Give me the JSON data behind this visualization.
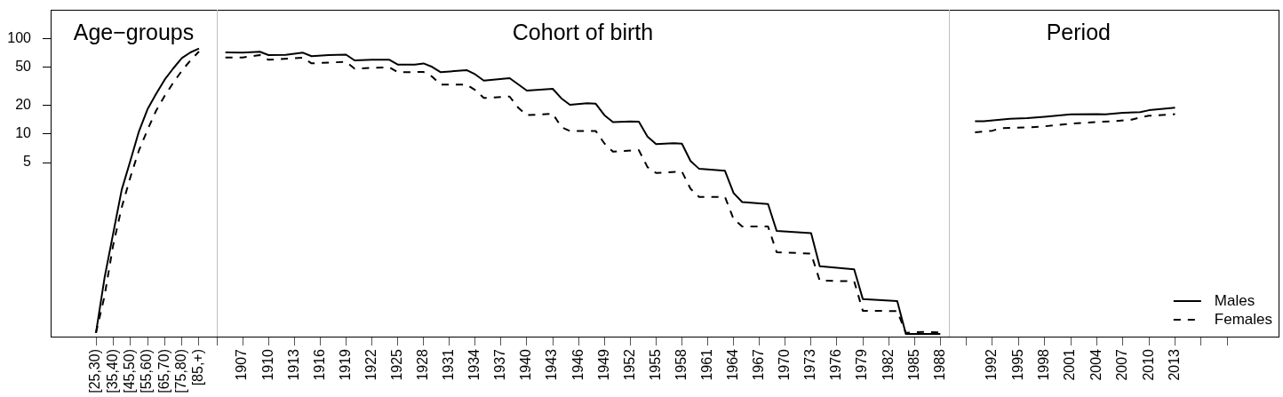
{
  "chart_data": [
    {
      "type": "line",
      "title": "Age−groups",
      "categories": [
        "[25,30)",
        null,
        "[35,40)",
        null,
        "[45,50)",
        null,
        "[55,60)",
        null,
        "[65,70)",
        null,
        "[75,80)",
        null,
        "[85,+)"
      ],
      "series": [
        {
          "color": "#000000",
          "line_style": "solid",
          "values": [
            0.082,
            0.31,
            0.9,
            2.6,
            5.2,
            10.6,
            18.1,
            26.2,
            37,
            48.6,
            62.4,
            71.5,
            78.5
          ]
        },
        {
          "color": "#000000",
          "line_style": "dashed",
          "values": [
            0.082,
            0.2,
            0.68,
            1.7,
            3.5,
            6.7,
            11,
            17.5,
            25,
            34.4,
            45.9,
            58.9,
            73
          ]
        }
      ],
      "ylim": [
        0.075,
        200
      ],
      "yticks": [
        5,
        10,
        20,
        50,
        100
      ],
      "log": true,
      "marker": "none"
    },
    {
      "type": "line",
      "title": "Cohort of birth",
      "series": [
        {
          "color": "#000000",
          "line_style": "solid",
          "x": [
            1905,
            1907,
            1909,
            1910,
            1912,
            1914,
            1915,
            1917,
            1919,
            1920,
            1922,
            1924,
            1925,
            1927,
            1928,
            1929,
            1930,
            1933,
            1934,
            1935,
            1938,
            1940,
            1943,
            1944,
            1945,
            1947,
            1948,
            1949,
            1950,
            1952,
            1953,
            1954,
            1955,
            1957,
            1958,
            1959,
            1960,
            1963,
            1964,
            1965,
            1968,
            1969,
            1973,
            1974,
            1978,
            1979,
            1983,
            1984,
            1988
          ],
          "values": [
            71.5,
            71,
            72.6,
            67,
            67.5,
            71,
            65.2,
            67,
            67.7,
            58.9,
            59.8,
            60,
            53.3,
            53.3,
            54.8,
            50.4,
            44.3,
            46.6,
            42.1,
            36.2,
            38.4,
            28.4,
            29.7,
            23.6,
            20.2,
            20.9,
            20.7,
            15.7,
            13.3,
            13.5,
            13.4,
            9.4,
            7.8,
            8,
            7.9,
            5.2,
            4.3,
            4.1,
            2.4,
            1.93,
            1.84,
            0.96,
            0.91,
            0.41,
            0.38,
            0.186,
            0.177,
            0.08,
            0.08
          ]
        },
        {
          "color": "#000000",
          "line_style": "dashed",
          "x": [
            1905,
            1907,
            1909,
            1910,
            1914,
            1915,
            1919,
            1920,
            1924,
            1925,
            1928,
            1929,
            1930,
            1933,
            1934,
            1935,
            1938,
            1939,
            1940,
            1943,
            1944,
            1945,
            1948,
            1949,
            1950,
            1953,
            1954,
            1955,
            1958,
            1959,
            1960,
            1963,
            1964,
            1965,
            1968,
            1969,
            1973,
            1974,
            1978,
            1979,
            1983,
            1984,
            1986,
            1988
          ],
          "values": [
            63.3,
            63.3,
            67.1,
            59.8,
            62.9,
            54.9,
            56.9,
            48.3,
            50,
            44.3,
            44.6,
            39.8,
            32.8,
            32.8,
            28.8,
            23.8,
            24.6,
            18.8,
            15.7,
            16.3,
            11.8,
            10.7,
            10.7,
            7.95,
            6.51,
            6.75,
            4.49,
            3.89,
            4.03,
            2.66,
            2.18,
            2.18,
            1.28,
            1.07,
            1.07,
            0.576,
            0.556,
            0.29,
            0.285,
            0.14,
            0.139,
            0.082,
            0.084,
            0.083
          ]
        }
      ],
      "xlim": [
        1904,
        1989
      ],
      "xticks": [
        {
          "value": 1904,
          "label": null
        },
        1907,
        1910,
        1913,
        1916,
        1919,
        1922,
        1925,
        1928,
        1931,
        1934,
        1937,
        1940,
        1943,
        1946,
        1949,
        1952,
        1955,
        1958,
        1961,
        1964,
        1967,
        1970,
        1973,
        1976,
        1979,
        1982,
        1985,
        1988
      ],
      "ylim": [
        0.075,
        200
      ],
      "log": true,
      "marker": "none",
      "tick_labels": "x"
    },
    {
      "type": "line",
      "title": "Period",
      "series": [
        {
          "name": "Males",
          "color": "#000000",
          "line_style": "solid",
          "x": [
            1990,
            1991,
            1994,
            1996,
            1998,
            2001,
            2004,
            2005,
            2007,
            2009,
            2010,
            2013
          ],
          "values": [
            13.6,
            13.6,
            14.4,
            14.6,
            15.1,
            16,
            16.1,
            16,
            16.6,
            16.9,
            17.7,
            18.8
          ]
        },
        {
          "name": "Females",
          "color": "#000000",
          "line_style": "dashed",
          "x": [
            1990,
            1992,
            1993,
            1996,
            1998,
            2001,
            2004,
            2006,
            2008,
            2009,
            2010,
            2013
          ],
          "values": [
            10.4,
            10.8,
            11.5,
            11.7,
            12,
            12.8,
            13.3,
            13.6,
            14.1,
            14.9,
            15.5,
            16.1
          ]
        }
      ],
      "xlim": [
        1987,
        2025
      ],
      "xticks": [
        {
          "value": 1989,
          "label": null
        },
        1992,
        1995,
        1998,
        2001,
        2004,
        2007,
        2010,
        2013,
        {
          "value": 2016,
          "label": null
        },
        {
          "value": 2019,
          "label": null
        }
      ],
      "ylim": [
        0.075,
        200
      ],
      "log": true,
      "marker": "none",
      "tick_labels": "x",
      "legend": "bottom right"
    }
  ]
}
